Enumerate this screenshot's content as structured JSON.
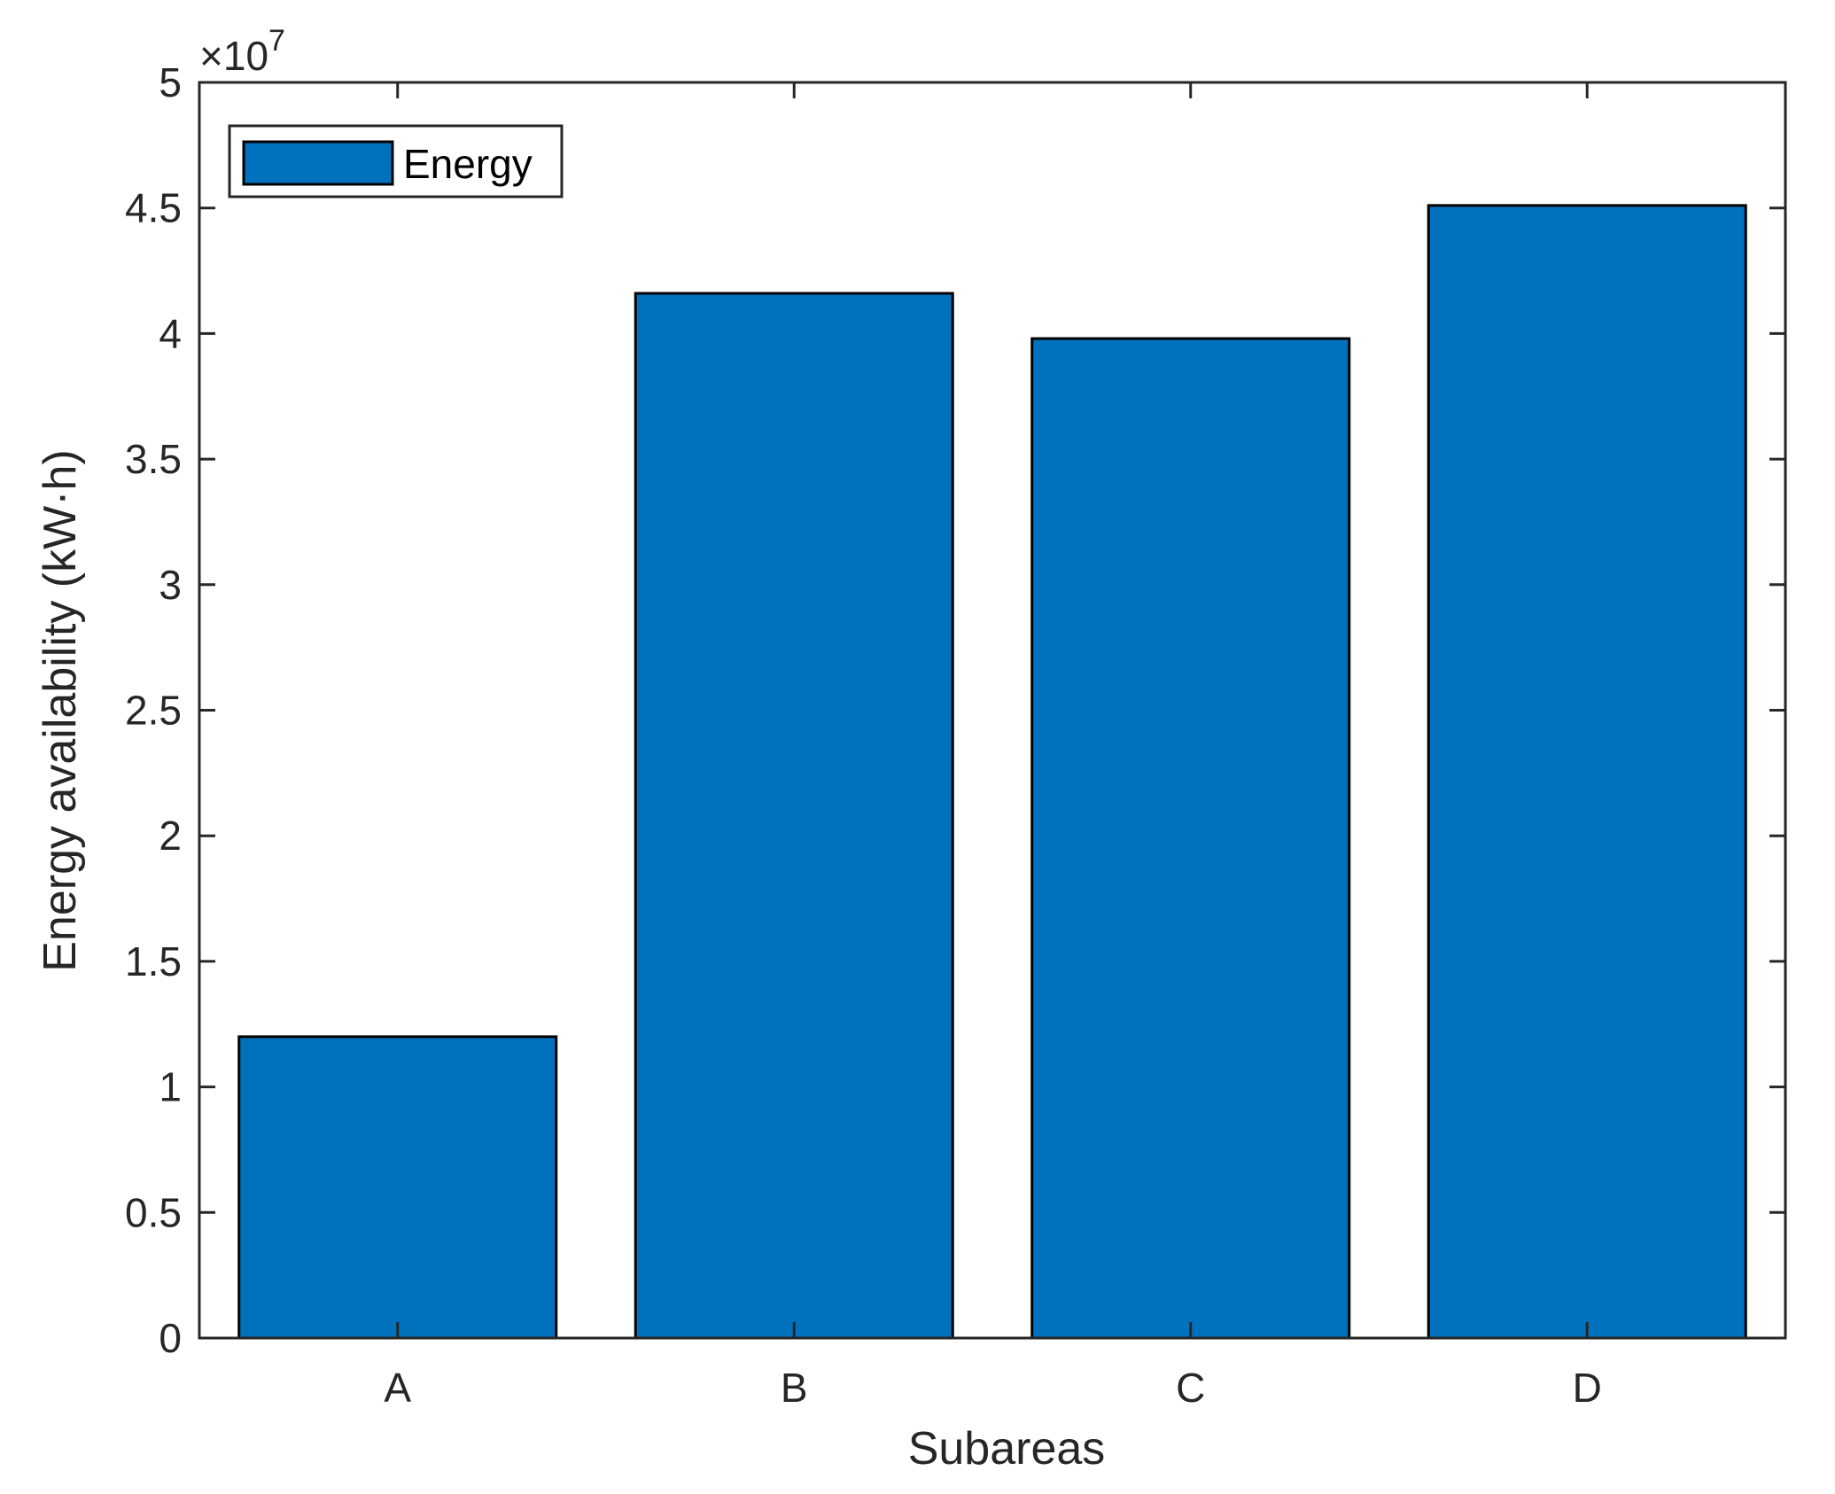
{
  "chart_data": {
    "type": "bar",
    "categories": [
      "A",
      "B",
      "C",
      "D"
    ],
    "series": [
      {
        "name": "Energy",
        "values": [
          12000000,
          41600000,
          39800000,
          45100000
        ],
        "color": "#0072BD"
      }
    ],
    "title": "",
    "xlabel": "Subareas",
    "ylabel": "Energy availability (kW·h)",
    "ylim": [
      0,
      50000000
    ],
    "yticks": [
      0,
      5000000,
      10000000,
      15000000,
      20000000,
      25000000,
      30000000,
      35000000,
      40000000,
      45000000,
      50000000
    ],
    "ytick_labels": [
      "0",
      "0.5",
      "1",
      "1.5",
      "2",
      "2.5",
      "3",
      "3.5",
      "4",
      "4.5",
      "5"
    ],
    "y_exponent_label": {
      "base": "×10",
      "power": "7"
    },
    "legend": {
      "position": "top-left",
      "entries": [
        "Energy"
      ]
    },
    "grid": false,
    "axis_color": "#262626",
    "bar_edge_color": "#000000"
  }
}
